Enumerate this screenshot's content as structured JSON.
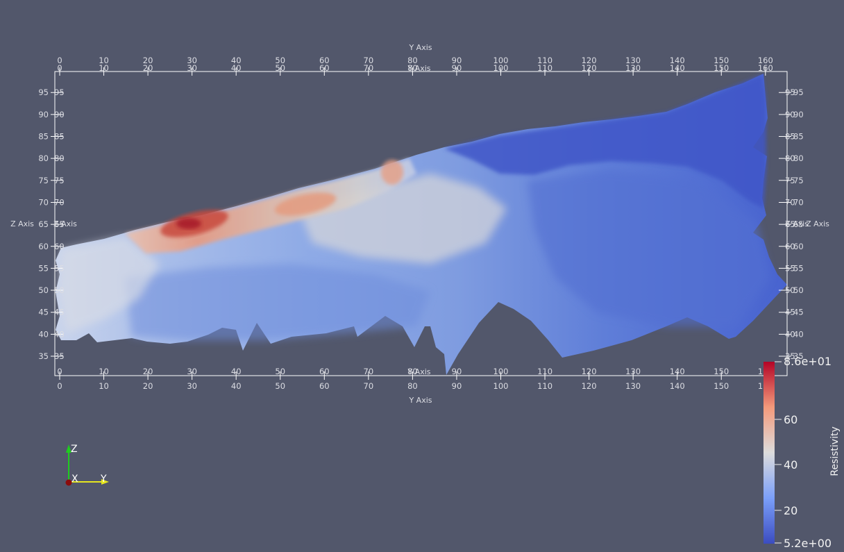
{
  "axes": {
    "y_axis_title": "Y Axis",
    "z_axis_title": "Z Axis",
    "y_ticks": [
      "0",
      "10",
      "20",
      "30",
      "40",
      "50",
      "60",
      "70",
      "80",
      "90",
      "100",
      "110",
      "120",
      "130",
      "140",
      "150",
      "160"
    ],
    "z_ticks": [
      "35",
      "40",
      "45",
      "50",
      "55",
      "60",
      "65",
      "70",
      "75",
      "80",
      "85",
      "90",
      "95"
    ]
  },
  "scalar_bar": {
    "title": "Resistivity",
    "max_label": "8.6e+01",
    "min_label": "5.2e+00",
    "ticks": [
      "60",
      "40",
      "20"
    ],
    "colors": {
      "high": "#b40426",
      "mid": "#dddcdc",
      "low": "#3b4cc0"
    }
  },
  "orientation_triad": {
    "z": "Z",
    "x": "X",
    "y": "Y"
  },
  "colors": {
    "background": "#52576b",
    "frame": "#ffffff"
  }
}
